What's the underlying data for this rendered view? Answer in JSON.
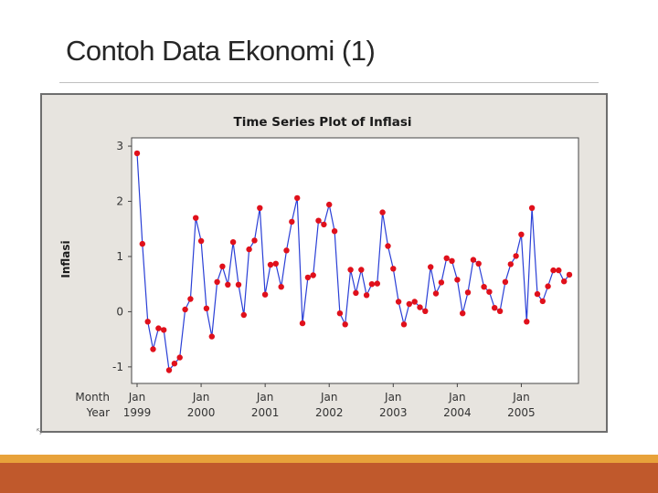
{
  "slide": {
    "title": "Contoh Data Ekonomi (1)"
  },
  "colors": {
    "line": "#2a3fd6",
    "marker": "#e0101b",
    "frame_bg": "#e7e4df",
    "plot_bg": "#ffffff",
    "footer_orange": "#e8a23a",
    "footer_brown": "#c0592c"
  },
  "chart_data": {
    "type": "line",
    "title": "Time Series Plot of Inflasi",
    "xlabel_rows": [
      "Month",
      "Year"
    ],
    "ylabel": "Inflasi",
    "ylim": [
      -1.3,
      3.15
    ],
    "yticks": [
      3,
      2,
      1,
      0,
      -1
    ],
    "x_tick_months": [
      "Jan",
      "Jan",
      "Jan",
      "Jan",
      "Jan",
      "Jan",
      "Jan"
    ],
    "x_tick_years": [
      "1999",
      "2000",
      "2001",
      "2002",
      "2003",
      "2004",
      "2005"
    ],
    "x_tick_index": [
      0,
      12,
      24,
      36,
      48,
      60,
      72
    ],
    "series": [
      {
        "name": "Inflasi",
        "values": [
          2.87,
          1.23,
          -0.18,
          -0.68,
          -0.3,
          -0.33,
          -1.06,
          -0.94,
          -0.83,
          0.04,
          0.23,
          1.7,
          1.28,
          0.06,
          -0.45,
          0.54,
          0.82,
          0.49,
          1.26,
          0.49,
          -0.06,
          1.13,
          1.29,
          1.88,
          0.31,
          0.85,
          0.87,
          0.45,
          1.11,
          1.63,
          2.06,
          -0.21,
          0.62,
          0.66,
          1.65,
          1.58,
          1.94,
          1.46,
          -0.03,
          -0.23,
          0.76,
          0.34,
          0.76,
          0.3,
          0.5,
          0.51,
          1.8,
          1.19,
          0.78,
          0.18,
          -0.23,
          0.14,
          0.18,
          0.08,
          0.01,
          0.81,
          0.33,
          0.53,
          0.97,
          0.92,
          0.58,
          -0.03,
          0.35,
          0.94,
          0.87,
          0.45,
          0.36,
          0.07,
          0.01,
          0.54,
          0.86,
          1.01,
          1.4,
          -0.18,
          1.88,
          0.32,
          0.19,
          0.46,
          0.75,
          0.75,
          0.55,
          0.67
        ]
      }
    ]
  }
}
